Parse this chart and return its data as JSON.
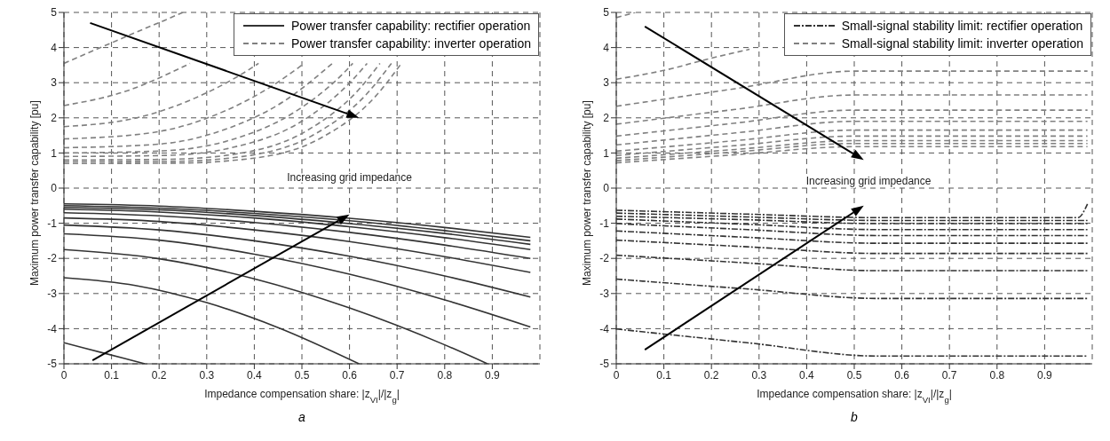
{
  "chart_data": [
    {
      "type": "line",
      "ylabel": "Maximum power transfer capability [pu]",
      "xlabel": "Impedance compensation share: |z$_{VI}$|/|z$_{g}$|",
      "annotations": [
        "Increasing grid impedance",
        "a"
      ],
      "xlim": [
        0,
        1
      ],
      "xticks": [
        0,
        0.1,
        0.2,
        0.3,
        0.4,
        0.5,
        0.6,
        0.7,
        0.8,
        0.9
      ],
      "ylim": [
        -5,
        5
      ],
      "yticks": [
        -5,
        -4,
        -3,
        -2,
        -1,
        0,
        1,
        2,
        3,
        4,
        5
      ],
      "grid": true,
      "legend": "top right",
      "series": [
        {
          "name": "Power transfer capability: rectifier operation",
          "color": "#333333",
          "line_style": "solid",
          "x": [
            0,
            0.2,
            0.4,
            0.6,
            0.8,
            0.98
          ],
          "values": [
            -0.45,
            -0.51,
            -0.66,
            -0.86,
            -1.12,
            -1.4
          ]
        },
        {
          "name": "Power transfer capability: inverter operation",
          "color": "#808080",
          "line_style": "dashed",
          "x": [
            0,
            0.075,
            0.125,
            0.175,
            0.2125,
            0.2375,
            0.25
          ],
          "values": [
            3.55,
            3.99,
            4.28,
            4.57,
            4.78,
            4.93,
            5
          ]
        },
        {
          "color": "#808080",
          "line_style": "dashed",
          "x": [
            0,
            0.135,
            0.225,
            0.265
          ],
          "values": [
            2.35,
            2.78,
            3.29,
            3.55
          ]
        },
        {
          "color": "#808080",
          "line_style": "dashed",
          "x": [
            0,
            0.165,
            0.275,
            0.385,
            0.409
          ],
          "values": [
            1.75,
            2.04,
            2.56,
            3.34,
            3.55
          ]
        },
        {
          "color": "#808080",
          "line_style": "dashed",
          "x": [
            0,
            0.186,
            0.31,
            0.434,
            0.505
          ],
          "values": [
            1.4,
            1.58,
            2.04,
            2.88,
            3.55
          ]
        },
        {
          "color": "#808080",
          "line_style": "dashed",
          "x": [
            0,
            0.198,
            0.33,
            0.462,
            0.564
          ],
          "values": [
            1.15,
            1.25,
            1.63,
            2.47,
            3.55
          ]
        },
        {
          "color": "#808080",
          "line_style": "dashed",
          "x": [
            0,
            0.207,
            0.345,
            0.483,
            0.5865,
            0.607
          ],
          "values": [
            1.0,
            1.06,
            1.35,
            2.15,
            3.26,
            3.55
          ]
        },
        {
          "color": "#808080",
          "line_style": "dashed",
          "x": [
            0,
            0.213,
            0.355,
            0.497,
            0.6035,
            0.637
          ],
          "values": [
            0.9,
            0.93,
            1.16,
            1.88,
            3.04,
            3.55
          ]
        },
        {
          "color": "#808080",
          "line_style": "dashed",
          "x": [
            0,
            0.219,
            0.365,
            0.511,
            0.6205,
            0.664
          ],
          "values": [
            0.8,
            0.82,
            0.98,
            1.64,
            2.82,
            3.55
          ]
        },
        {
          "color": "#808080",
          "line_style": "dashed",
          "x": [
            0,
            0.225,
            0.375,
            0.525,
            0.6375,
            0.688
          ],
          "values": [
            0.75,
            0.76,
            0.9,
            1.52,
            2.7,
            3.55
          ]
        },
        {
          "color": "#808080",
          "line_style": "dashed",
          "x": [
            0,
            0.231,
            0.385,
            0.539,
            0.6545,
            0.709
          ],
          "values": [
            0.7,
            0.71,
            0.83,
            1.42,
            2.61,
            3.55
          ]
        },
        {
          "color": "#333333",
          "line_style": "solid",
          "x": [
            0,
            0.2,
            0.4,
            0.6,
            0.8,
            0.98
          ],
          "values": [
            -0.5,
            -0.57,
            -0.72,
            -0.93,
            -1.21,
            -1.5
          ]
        },
        {
          "color": "#333333",
          "line_style": "solid",
          "x": [
            0,
            0.2,
            0.4,
            0.6,
            0.8,
            0.98
          ],
          "values": [
            -0.55,
            -0.62,
            -0.78,
            -1.01,
            -1.29,
            -1.6
          ]
        },
        {
          "color": "#333333",
          "line_style": "solid",
          "x": [
            0,
            0.2,
            0.4,
            0.6,
            0.8,
            0.98
          ],
          "values": [
            -0.6,
            -0.68,
            -0.85,
            -1.1,
            -1.41,
            -1.75
          ]
        },
        {
          "color": "#333333",
          "line_style": "solid",
          "x": [
            0,
            0.2,
            0.4,
            0.6,
            0.8,
            0.98
          ],
          "values": [
            -0.7,
            -0.79,
            -0.98,
            -1.26,
            -1.62,
            -2.0
          ]
        },
        {
          "color": "#333333",
          "line_style": "solid",
          "x": [
            0,
            0.2,
            0.4,
            0.6,
            0.8,
            0.98
          ],
          "values": [
            -0.85,
            -0.95,
            -1.19,
            -1.52,
            -1.95,
            -2.4
          ]
        },
        {
          "color": "#333333",
          "line_style": "solid",
          "x": [
            0,
            0.2,
            0.4,
            0.6,
            0.8,
            0.98
          ],
          "values": [
            -1.05,
            -1.19,
            -1.5,
            -1.94,
            -2.5,
            -3.1
          ]
        },
        {
          "color": "#333333",
          "line_style": "solid",
          "x": [
            0,
            0.2,
            0.4,
            0.6,
            0.8,
            0.98
          ],
          "values": [
            -1.3,
            -1.48,
            -1.88,
            -2.45,
            -3.18,
            -3.95
          ]
        },
        {
          "color": "#333333",
          "line_style": "solid",
          "x": [
            0,
            0.2,
            0.4,
            0.6,
            0.8,
            0.89
          ],
          "values": [
            -1.75,
            -2.01,
            -2.58,
            -3.41,
            -4.46,
            -5
          ]
        },
        {
          "color": "#333333",
          "line_style": "solid",
          "x": [
            0,
            0.15,
            0.3,
            0.45,
            0.62
          ],
          "values": [
            -2.55,
            -2.77,
            -3.26,
            -3.97,
            -5
          ]
        },
        {
          "color": "#333333",
          "line_style": "solid",
          "x": [
            0,
            0.085,
            0.17
          ],
          "values": [
            -4.4,
            -4.7,
            -5
          ]
        }
      ]
    },
    {
      "type": "line",
      "ylabel": "Maximum power transfer capability [pu]",
      "xlabel": "Impedance compensation share: |z$_{VI}$|/|z$_{g}$|",
      "annotations": [
        "Increasing grid impedance",
        "b"
      ],
      "xlim": [
        0,
        1
      ],
      "xticks": [
        0,
        0.1,
        0.2,
        0.3,
        0.4,
        0.5,
        0.6,
        0.7,
        0.8,
        0.9
      ],
      "ylim": [
        -5,
        5
      ],
      "yticks": [
        -5,
        -4,
        -3,
        -2,
        -1,
        0,
        1,
        2,
        3,
        4,
        5
      ],
      "grid": true,
      "legend": "top right",
      "series": [
        {
          "name": "Small-signal stability limit: rectifier operation",
          "color": "#333333",
          "line_style": "dashdot",
          "x": [
            0,
            0.275,
            0.55,
            0.75,
            0.97,
            0.99
          ],
          "values": [
            -0.63,
            -0.74,
            -0.84,
            -0.84,
            -0.84,
            -0.45
          ]
        },
        {
          "name": "Small-signal stability limit: inverter operation",
          "color": "#808080",
          "line_style": "dashed",
          "x": [
            0,
            0.04
          ],
          "values": [
            4.85,
            5
          ]
        },
        {
          "color": "#808080",
          "line_style": "dashed",
          "x": [
            0,
            0.1,
            0.2,
            0.28
          ],
          "values": [
            3.1,
            3.35,
            3.7,
            3.95
          ]
        },
        {
          "color": "#808080",
          "line_style": "dashed",
          "x": [
            0,
            0.25,
            0.5,
            0.75,
            0.99
          ],
          "values": [
            2.33,
            2.83,
            3.33,
            3.33,
            3.33
          ]
        },
        {
          "color": "#808080",
          "line_style": "dashed",
          "x": [
            0,
            0.25,
            0.5,
            0.75,
            0.99
          ],
          "values": [
            1.82,
            2.24,
            2.65,
            2.65,
            2.65
          ]
        },
        {
          "color": "#808080",
          "line_style": "dashed",
          "x": [
            0,
            0.25,
            0.5,
            0.75,
            0.99
          ],
          "values": [
            1.48,
            1.85,
            2.22,
            2.22,
            2.22
          ]
        },
        {
          "color": "#808080",
          "line_style": "dashed",
          "x": [
            0,
            0.25,
            0.5,
            0.75,
            0.99
          ],
          "values": [
            1.23,
            1.57,
            1.9,
            1.9,
            1.9
          ]
        },
        {
          "color": "#808080",
          "line_style": "dashed",
          "x": [
            0,
            0.25,
            0.5,
            0.75,
            0.99
          ],
          "values": [
            1.05,
            1.35,
            1.65,
            1.65,
            1.65
          ]
        },
        {
          "color": "#808080",
          "line_style": "dashed",
          "x": [
            0,
            0.25,
            0.5,
            0.75,
            0.99
          ],
          "values": [
            0.93,
            1.21,
            1.48,
            1.48,
            1.48
          ]
        },
        {
          "color": "#808080",
          "line_style": "dashed",
          "x": [
            0,
            0.25,
            0.5,
            0.75,
            0.99
          ],
          "values": [
            0.85,
            1.1,
            1.35,
            1.35,
            1.35
          ]
        },
        {
          "color": "#808080",
          "line_style": "dashed",
          "x": [
            0,
            0.25,
            0.5,
            0.75,
            0.99
          ],
          "values": [
            0.78,
            1.03,
            1.27,
            1.27,
            1.27
          ]
        },
        {
          "color": "#808080",
          "line_style": "dashed",
          "x": [
            0,
            0.25,
            0.5,
            0.75,
            0.99
          ],
          "values": [
            0.72,
            0.95,
            1.18,
            1.18,
            1.18
          ]
        },
        {
          "color": "#333333",
          "line_style": "dashdot",
          "x": [
            0,
            0.275,
            0.55,
            0.75,
            0.99
          ],
          "values": [
            -0.71,
            -0.82,
            -0.92,
            -0.92,
            -0.92
          ]
        },
        {
          "color": "#333333",
          "line_style": "dashdot",
          "x": [
            0,
            0.275,
            0.55,
            0.75,
            0.99
          ],
          "values": [
            -0.8,
            -0.9,
            -1.01,
            -1.01,
            -1.01
          ]
        },
        {
          "color": "#333333",
          "line_style": "dashdot",
          "x": [
            0,
            0.275,
            0.55,
            0.75,
            0.99
          ],
          "values": [
            -0.88,
            -1.03,
            -1.18,
            -1.18,
            -1.18
          ]
        },
        {
          "color": "#333333",
          "line_style": "dashdot",
          "x": [
            0,
            0.275,
            0.55,
            0.75,
            0.99
          ],
          "values": [
            -1.01,
            -1.18,
            -1.35,
            -1.35,
            -1.35
          ]
        },
        {
          "color": "#333333",
          "line_style": "dashdot",
          "x": [
            0,
            0.275,
            0.55,
            0.75,
            0.99
          ],
          "values": [
            -1.22,
            -1.4,
            -1.57,
            -1.57,
            -1.57
          ]
        },
        {
          "color": "#333333",
          "line_style": "dashdot",
          "x": [
            0,
            0.275,
            0.55,
            0.75,
            0.99
          ],
          "values": [
            -1.48,
            -1.67,
            -1.86,
            -1.86,
            -1.86
          ]
        },
        {
          "color": "#333333",
          "line_style": "dashdot",
          "x": [
            0,
            0.275,
            0.55,
            0.75,
            0.99
          ],
          "values": [
            -1.91,
            -2.13,
            -2.35,
            -2.35,
            -2.35
          ]
        },
        {
          "color": "#333333",
          "line_style": "dashdot",
          "x": [
            0,
            0.275,
            0.55,
            0.75,
            0.99
          ],
          "values": [
            -2.59,
            -2.87,
            -3.14,
            -3.14,
            -3.14
          ]
        },
        {
          "color": "#333333",
          "line_style": "dashdot",
          "x": [
            0,
            0.275,
            0.55,
            0.75,
            0.99
          ],
          "values": [
            -4.01,
            -4.4,
            -4.78,
            -4.78,
            -4.78
          ]
        }
      ]
    }
  ]
}
